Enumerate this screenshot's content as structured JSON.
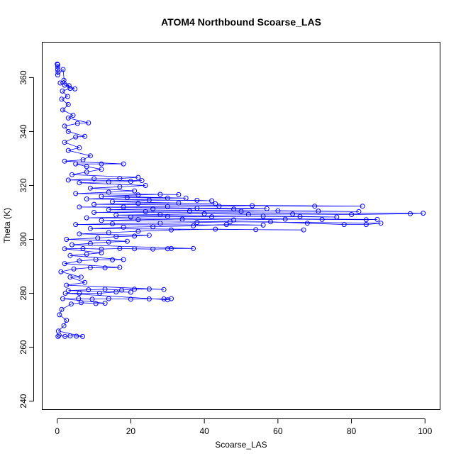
{
  "chart_data": {
    "type": "scatter",
    "title": "ATOM4 Northbound Scoarse_LAS",
    "xlabel": "Scoarse_LAS",
    "ylabel": "Theta (K)",
    "xlim": [
      -4,
      104
    ],
    "ylim": [
      237,
      373
    ],
    "x_ticks": [
      0,
      20,
      40,
      60,
      80,
      100
    ],
    "y_ticks": [
      240,
      260,
      280,
      300,
      320,
      340,
      360
    ],
    "x_tick_labels": [
      "0",
      "20",
      "40",
      "60",
      "80",
      "100"
    ],
    "y_tick_labels": [
      "240",
      "260",
      "280",
      "300",
      "320",
      "340",
      "360"
    ],
    "series_color": "#0000ff",
    "marker": "open-circle",
    "connected_by_lines": true,
    "grid": false,
    "series": [
      {
        "points": [
          [
            0.2,
            264
          ],
          [
            0.5,
            264.5
          ],
          [
            2.1,
            264
          ],
          [
            3.5,
            264.2
          ],
          [
            5.2,
            264.1
          ],
          [
            6.9,
            264
          ],
          [
            0.3,
            266
          ],
          [
            1.8,
            268
          ],
          [
            2.5,
            270
          ],
          [
            0.6,
            272
          ],
          [
            1.2,
            274
          ],
          [
            3.8,
            276
          ],
          [
            6.5,
            276.5
          ],
          [
            10.5,
            276.2
          ],
          [
            13,
            276.3
          ],
          [
            1.5,
            278
          ],
          [
            5.8,
            278
          ],
          [
            9.5,
            277.8
          ],
          [
            14,
            278
          ],
          [
            20,
            277.8
          ],
          [
            25,
            277.9
          ],
          [
            29,
            277.9
          ],
          [
            31,
            278
          ],
          [
            30,
            277.6
          ],
          [
            2.2,
            280
          ],
          [
            6,
            280
          ],
          [
            11.5,
            280
          ],
          [
            16,
            280.5
          ],
          [
            20,
            280.4
          ],
          [
            3,
            281
          ],
          [
            8.5,
            281.3
          ],
          [
            13,
            281.5
          ],
          [
            17.5,
            281.2
          ],
          [
            21,
            281.5
          ],
          [
            25,
            281.6
          ],
          [
            29,
            281.4
          ],
          [
            2.5,
            283
          ],
          [
            7.5,
            284
          ],
          [
            3.5,
            286
          ],
          [
            6.5,
            286
          ],
          [
            1,
            288
          ],
          [
            4.5,
            289
          ],
          [
            9,
            289.5
          ],
          [
            13,
            289.4
          ],
          [
            17,
            289.6
          ],
          [
            2,
            291
          ],
          [
            6,
            292
          ],
          [
            10.5,
            292.5
          ],
          [
            15,
            292.4
          ],
          [
            18,
            292.5
          ],
          [
            3.5,
            294
          ],
          [
            8,
            294.5
          ],
          [
            12,
            295
          ],
          [
            2,
            296.5
          ],
          [
            7,
            296.6
          ],
          [
            12,
            296.4
          ],
          [
            17,
            296.6
          ],
          [
            21,
            296.5
          ],
          [
            26,
            296.4
          ],
          [
            30,
            296.5
          ],
          [
            31,
            296.6
          ],
          [
            37,
            296.6
          ],
          [
            4,
            298
          ],
          [
            9,
            298.5
          ],
          [
            14,
            299
          ],
          [
            19,
            299.3
          ],
          [
            2.5,
            300
          ],
          [
            11,
            300.5
          ],
          [
            16,
            301
          ],
          [
            21,
            301.2
          ],
          [
            25,
            301.5
          ],
          [
            6,
            302
          ],
          [
            14,
            302.5
          ],
          [
            22,
            303
          ],
          [
            31,
            303.5
          ],
          [
            43,
            303.8
          ],
          [
            54,
            303.6
          ],
          [
            67,
            303.5
          ],
          [
            9,
            304
          ],
          [
            18,
            304.5
          ],
          [
            26,
            304.7
          ],
          [
            37,
            305
          ],
          [
            46,
            305.5
          ],
          [
            56,
            305.3
          ],
          [
            5,
            305.5
          ],
          [
            15,
            305.8
          ],
          [
            28,
            306
          ],
          [
            38,
            306.3
          ],
          [
            47,
            306.5
          ],
          [
            58,
            306.5
          ],
          [
            68,
            306
          ],
          [
            78,
            305.5
          ],
          [
            84,
            305.5
          ],
          [
            88,
            306
          ],
          [
            12,
            307
          ],
          [
            22,
            307.3
          ],
          [
            34,
            307.5
          ],
          [
            48,
            307.2
          ],
          [
            62,
            307.5
          ],
          [
            72,
            307.4
          ],
          [
            84,
            307.3
          ],
          [
            87,
            307.4
          ],
          [
            8,
            308
          ],
          [
            20,
            308.3
          ],
          [
            30,
            308.5
          ],
          [
            42,
            308.4
          ],
          [
            56,
            308.6
          ],
          [
            66,
            308.5
          ],
          [
            76,
            308.3
          ],
          [
            16,
            309
          ],
          [
            28,
            309.2
          ],
          [
            40,
            309.5
          ],
          [
            52,
            309.3
          ],
          [
            64,
            309.4
          ],
          [
            80,
            309.2
          ],
          [
            96,
            309.5
          ],
          [
            99.5,
            309.7
          ],
          [
            10,
            310
          ],
          [
            24,
            310.3
          ],
          [
            36,
            310.5
          ],
          [
            50,
            310.4
          ],
          [
            60,
            310.6
          ],
          [
            71,
            310.5
          ],
          [
            82,
            310.3
          ],
          [
            14,
            311
          ],
          [
            26,
            311.3
          ],
          [
            38,
            311.5
          ],
          [
            48,
            311.2
          ],
          [
            57,
            311.4
          ],
          [
            6,
            312
          ],
          [
            18,
            312
          ],
          [
            30,
            312.2
          ],
          [
            44,
            312.3
          ],
          [
            53,
            312.5
          ],
          [
            70,
            312.3
          ],
          [
            83,
            312.3
          ],
          [
            10,
            313
          ],
          [
            22,
            313.3
          ],
          [
            33,
            313.5
          ],
          [
            43,
            313.2
          ],
          [
            15,
            314
          ],
          [
            25,
            314.5
          ],
          [
            38,
            314.5
          ],
          [
            42,
            314.3
          ],
          [
            8,
            315
          ],
          [
            19,
            315.5
          ],
          [
            30,
            315.3
          ],
          [
            35,
            315.3
          ],
          [
            12,
            316
          ],
          [
            22,
            316.5
          ],
          [
            28,
            316.7
          ],
          [
            33,
            316.6
          ],
          [
            5,
            317
          ],
          [
            14,
            317.5
          ],
          [
            21,
            318
          ],
          [
            9,
            319
          ],
          [
            17,
            319.5
          ],
          [
            24,
            320
          ],
          [
            6,
            321
          ],
          [
            14,
            321.3
          ],
          [
            20,
            321.5
          ],
          [
            23,
            321.8
          ],
          [
            3,
            322
          ],
          [
            10,
            322.5
          ],
          [
            17,
            322.6
          ],
          [
            22,
            323
          ],
          [
            4,
            324
          ],
          [
            8,
            325
          ],
          [
            12,
            326
          ],
          [
            8,
            327
          ],
          [
            5,
            328
          ],
          [
            12,
            328
          ],
          [
            18,
            328
          ],
          [
            2,
            329
          ],
          [
            7,
            329.5
          ],
          [
            9,
            331
          ],
          [
            3,
            333
          ],
          [
            6,
            334
          ],
          [
            2,
            336
          ],
          [
            5,
            338
          ],
          [
            7.5,
            338.2
          ],
          [
            3,
            340
          ],
          [
            2,
            342
          ],
          [
            5.5,
            343
          ],
          [
            8.5,
            343.2
          ],
          [
            3,
            345
          ],
          [
            4.3,
            346
          ],
          [
            1.5,
            348
          ],
          [
            3,
            350
          ],
          [
            1.2,
            352
          ],
          [
            2.8,
            353
          ],
          [
            1.4,
            355
          ],
          [
            3.5,
            356
          ],
          [
            4.8,
            355.8
          ],
          [
            0.8,
            358
          ],
          [
            1.8,
            359
          ],
          [
            3.2,
            357
          ],
          [
            2,
            357.2
          ],
          [
            1.6,
            363
          ],
          [
            0.1,
            361
          ],
          [
            0.2,
            362
          ],
          [
            0.1,
            363
          ],
          [
            0.1,
            364
          ],
          [
            0,
            365
          ],
          [
            0.1,
            364.8
          ]
        ]
      }
    ]
  }
}
